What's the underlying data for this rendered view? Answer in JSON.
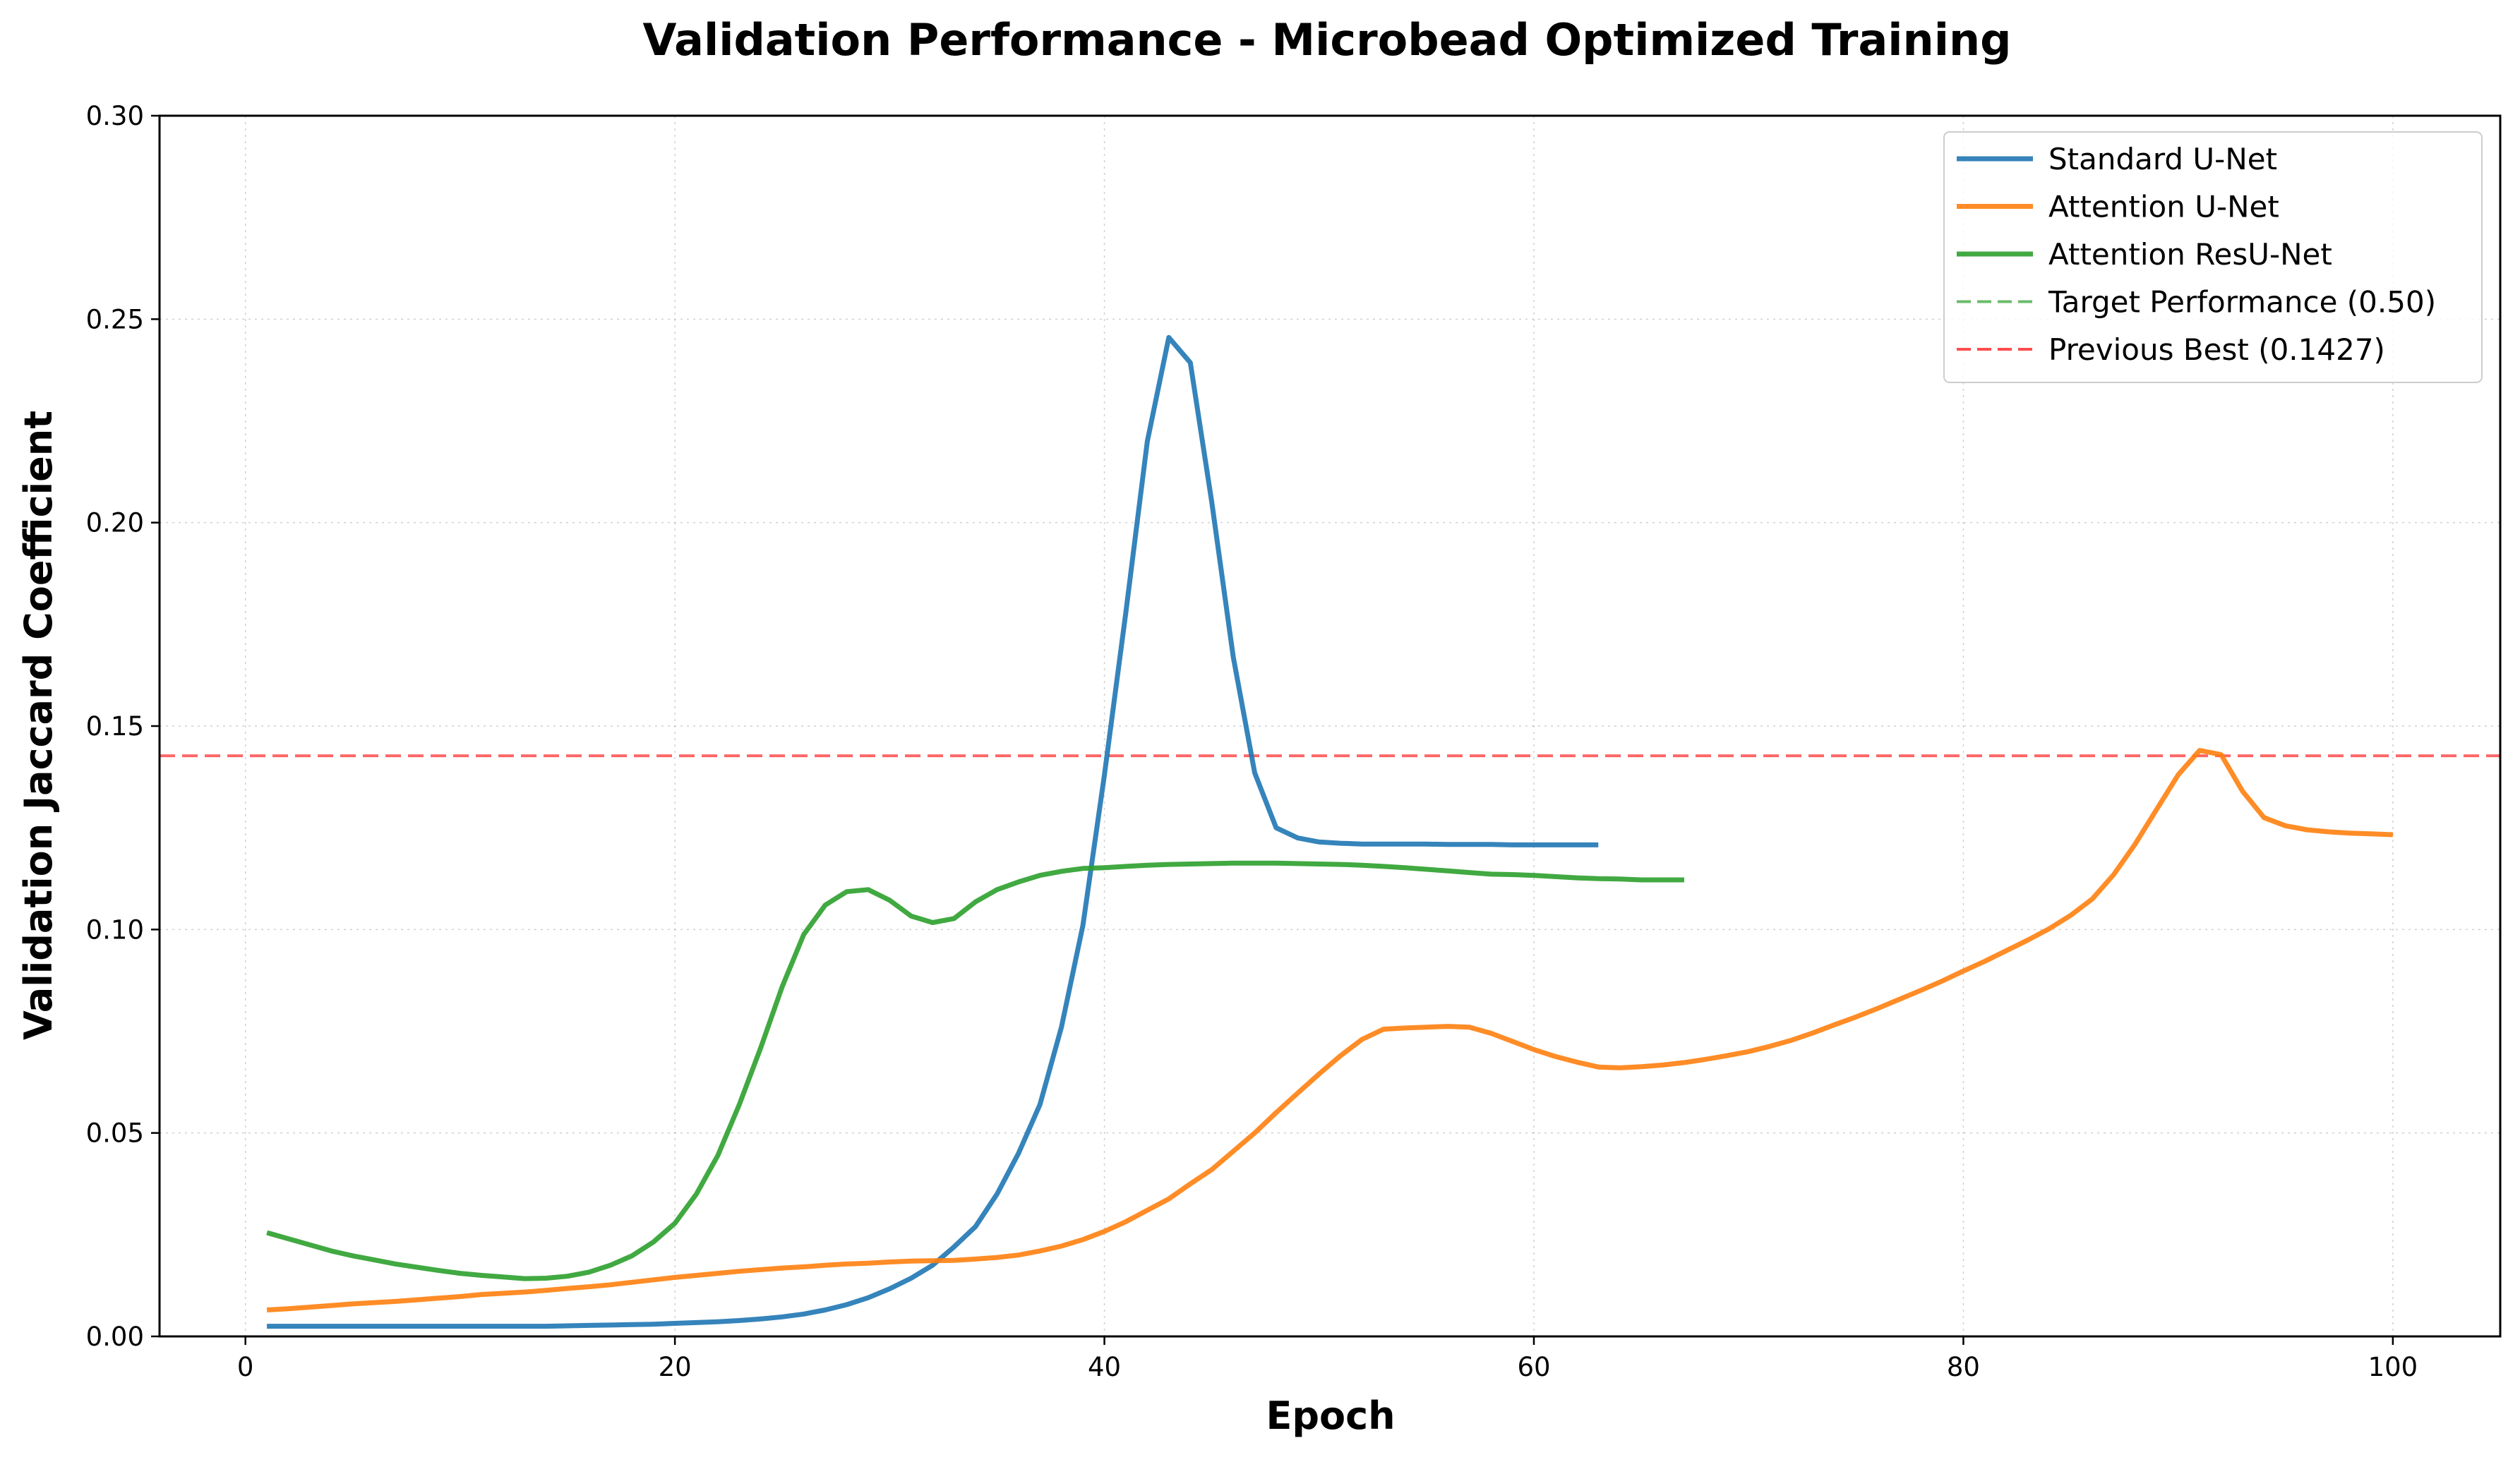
{
  "chart_data": {
    "type": "line",
    "title": "Validation Performance - Microbead Optimized Training",
    "xlabel": "Epoch",
    "ylabel": "Validation Jaccard Coefficient",
    "xlim": [
      -4,
      105
    ],
    "ylim": [
      0,
      0.3
    ],
    "xticks": [
      0,
      20,
      40,
      60,
      80,
      100
    ],
    "xtick_labels": [
      "0",
      "20",
      "40",
      "60",
      "80",
      "100"
    ],
    "yticks": [
      0,
      0.05,
      0.1,
      0.15,
      0.2,
      0.25,
      0.3
    ],
    "ytick_labels": [
      "0.00",
      "0.05",
      "0.10",
      "0.15",
      "0.20",
      "0.25",
      "0.30"
    ],
    "grid": true,
    "legend_position": "top-right",
    "series": [
      {
        "name": "Standard U-Net",
        "color": "#1f77b4",
        "x": [
          1,
          2,
          3,
          4,
          5,
          6,
          7,
          8,
          9,
          10,
          11,
          12,
          13,
          14,
          15,
          16,
          17,
          18,
          19,
          20,
          21,
          22,
          23,
          24,
          25,
          26,
          27,
          28,
          29,
          30,
          31,
          32,
          33,
          34,
          35,
          36,
          37,
          38,
          39,
          40,
          41,
          42,
          43,
          44,
          45,
          46,
          47,
          48,
          49,
          50,
          51,
          52,
          53,
          54,
          55,
          56,
          57,
          58,
          59,
          60,
          61,
          62,
          63
        ],
        "values": [
          0.0025,
          0.0025,
          0.0025,
          0.0025,
          0.0025,
          0.0025,
          0.0025,
          0.0025,
          0.0025,
          0.0025,
          0.0025,
          0.0025,
          0.0025,
          0.0025,
          0.0026,
          0.0027,
          0.0028,
          0.0029,
          0.003,
          0.0032,
          0.0034,
          0.0036,
          0.0039,
          0.0043,
          0.0048,
          0.0055,
          0.0065,
          0.0078,
          0.0095,
          0.0117,
          0.0143,
          0.0175,
          0.022,
          0.027,
          0.035,
          0.045,
          0.057,
          0.076,
          0.101,
          0.138,
          0.178,
          0.22,
          0.2455,
          0.2393,
          0.205,
          0.167,
          0.1385,
          0.125,
          0.1225,
          0.1215,
          0.1212,
          0.121,
          0.121,
          0.121,
          0.121,
          0.1209,
          0.1209,
          0.1209,
          0.1208,
          0.1208,
          0.1208,
          0.1208,
          0.1208
        ]
      },
      {
        "name": "Attention U-Net",
        "color": "#ff7f0e",
        "x": [
          1,
          2,
          3,
          4,
          5,
          6,
          7,
          8,
          9,
          10,
          11,
          12,
          13,
          14,
          15,
          16,
          17,
          18,
          19,
          20,
          21,
          22,
          23,
          24,
          25,
          26,
          27,
          28,
          29,
          30,
          31,
          32,
          33,
          34,
          35,
          36,
          37,
          38,
          39,
          40,
          41,
          42,
          43,
          44,
          45,
          46,
          47,
          48,
          49,
          50,
          51,
          52,
          53,
          54,
          55,
          56,
          57,
          58,
          59,
          60,
          61,
          62,
          63,
          64,
          65,
          66,
          67,
          68,
          69,
          70,
          71,
          72,
          73,
          74,
          75,
          76,
          77,
          78,
          79,
          80,
          81,
          82,
          83,
          84,
          85,
          86,
          87,
          88,
          89,
          90,
          91,
          92,
          93,
          94,
          95,
          96,
          97,
          98,
          99,
          100
        ],
        "values": [
          0.0065,
          0.0068,
          0.0072,
          0.0076,
          0.008,
          0.0083,
          0.0086,
          0.009,
          0.0094,
          0.0098,
          0.0103,
          0.0106,
          0.0109,
          0.0113,
          0.0118,
          0.0122,
          0.0127,
          0.0133,
          0.0139,
          0.0145,
          0.015,
          0.0155,
          0.016,
          0.0164,
          0.0168,
          0.0171,
          0.0175,
          0.0178,
          0.018,
          0.0183,
          0.0185,
          0.0186,
          0.0187,
          0.019,
          0.0194,
          0.02,
          0.021,
          0.0222,
          0.0238,
          0.0258,
          0.0282,
          0.031,
          0.0338,
          0.0375,
          0.041,
          0.0455,
          0.05,
          0.055,
          0.0598,
          0.0645,
          0.069,
          0.073,
          0.0755,
          0.0758,
          0.076,
          0.0762,
          0.076,
          0.0745,
          0.0725,
          0.0705,
          0.0688,
          0.0674,
          0.0662,
          0.066,
          0.0663,
          0.0667,
          0.0673,
          0.0681,
          0.069,
          0.07,
          0.0713,
          0.0728,
          0.0746,
          0.0766,
          0.0785,
          0.0806,
          0.0828,
          0.085,
          0.0873,
          0.0898,
          0.0922,
          0.0948,
          0.0974,
          0.1002,
          0.1035,
          0.1075,
          0.1135,
          0.121,
          0.1295,
          0.138,
          0.144,
          0.143,
          0.134,
          0.1275,
          0.1255,
          0.1245,
          0.124,
          0.1237,
          0.1235,
          0.1233
        ]
      },
      {
        "name": "Attention ResU-Net",
        "color": "#2ca02c",
        "x": [
          1,
          2,
          3,
          4,
          5,
          6,
          7,
          8,
          9,
          10,
          11,
          12,
          13,
          14,
          15,
          16,
          17,
          18,
          19,
          20,
          21,
          22,
          23,
          24,
          25,
          26,
          27,
          28,
          29,
          30,
          31,
          32,
          33,
          34,
          35,
          36,
          37,
          38,
          39,
          40,
          41,
          42,
          43,
          44,
          45,
          46,
          47,
          48,
          49,
          50,
          51,
          52,
          53,
          54,
          55,
          56,
          57,
          58,
          59,
          60,
          61,
          62,
          63,
          64,
          65,
          66,
          67
        ],
        "values": [
          0.0255,
          0.024,
          0.0225,
          0.021,
          0.0198,
          0.0188,
          0.0178,
          0.017,
          0.0162,
          0.0155,
          0.015,
          0.0146,
          0.0142,
          0.0143,
          0.0148,
          0.0158,
          0.0175,
          0.0198,
          0.0232,
          0.0278,
          0.035,
          0.0445,
          0.057,
          0.071,
          0.086,
          0.0988,
          0.106,
          0.1093,
          0.1098,
          0.1072,
          0.1033,
          0.1017,
          0.1027,
          0.1068,
          0.1098,
          0.1117,
          0.1133,
          0.1143,
          0.115,
          0.1152,
          0.1155,
          0.1158,
          0.116,
          0.1161,
          0.1162,
          0.1163,
          0.1163,
          0.1163,
          0.1162,
          0.1161,
          0.116,
          0.1158,
          0.1155,
          0.1152,
          0.1148,
          0.1144,
          0.114,
          0.1136,
          0.1135,
          0.1133,
          0.113,
          0.1127,
          0.1125,
          0.1124,
          0.1122,
          0.1122,
          0.1122
        ]
      },
      {
        "name": "Target Performance (0.50)",
        "color": "#2ca02c",
        "dashed": true,
        "y": 0.5
      },
      {
        "name": "Previous Best (0.1427)",
        "color": "#ff0000",
        "dashed": true,
        "y": 0.1427
      }
    ]
  }
}
